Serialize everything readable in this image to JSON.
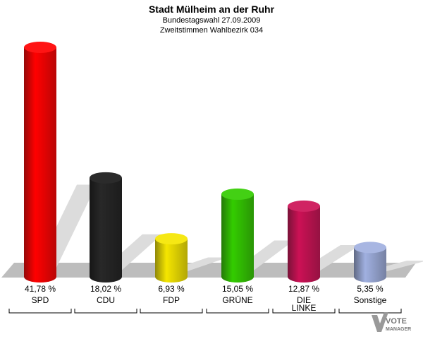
{
  "chart_data": {
    "type": "bar",
    "title": "Stadt Mülheim an der Ruhr",
    "subtitle": "Bundestagswahl 27.09.2009",
    "subtitle2": "Zweitstimmen Wahlbezirk 034",
    "categories": [
      "SPD",
      "CDU",
      "FDP",
      "GRÜNE",
      "DIE LINKE",
      "Sonstige"
    ],
    "category_lines": [
      [
        "SPD"
      ],
      [
        "CDU"
      ],
      [
        "FDP"
      ],
      [
        "GRÜNE"
      ],
      [
        "DIE",
        "LINKE"
      ],
      [
        "Sonstige"
      ]
    ],
    "values": [
      41.78,
      18.02,
      6.93,
      15.05,
      12.87,
      5.35
    ],
    "value_labels": [
      "41,78 %",
      "18,02 %",
      "6,93 %",
      "15,05 %",
      "12,87 %",
      "5,35 %"
    ],
    "colors": [
      "#ff0000",
      "#000000",
      "#f5e600",
      "#33cc00",
      "#cc1155",
      "#a0b0e0"
    ],
    "ylim": [
      0,
      41.78
    ],
    "xlabel": "",
    "ylabel": ""
  },
  "logo": {
    "line1": "VOTE",
    "line2": "MANAGER"
  }
}
